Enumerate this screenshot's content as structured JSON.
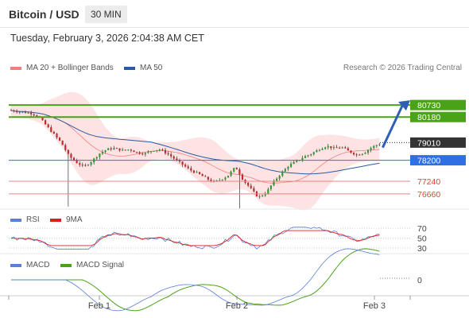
{
  "header": {
    "title": "Bitcoin / USD",
    "timeframe": "30 MIN"
  },
  "datetime": "Tuesday, February 3, 2026 2:04:38 AM CET",
  "legend": {
    "ma20": {
      "label": "MA 20 + Bollinger Bands",
      "color": "#f08080"
    },
    "ma50": {
      "label": "MA 50",
      "color": "#2c5aa0"
    }
  },
  "credit": "Research © 2026 Trading Central",
  "chart_data": {
    "type": "candlestick",
    "price_range": [
      76000,
      81900
    ],
    "levels": [
      {
        "label": "80730",
        "value": 80730,
        "color": "#4aa218"
      },
      {
        "label": "80180",
        "value": 80180,
        "color": "#4aa218"
      },
      {
        "label": "79010",
        "value": 79010,
        "color": "#333333"
      },
      {
        "label": "78200",
        "value": 78200,
        "color": "#2f6fe4"
      },
      {
        "label": "77240",
        "value": 77240,
        "color": "#f08080"
      },
      {
        "label": "76660",
        "value": 76660,
        "color": "#f08080"
      }
    ],
    "close_path": [
      80500,
      80450,
      80400,
      80350,
      80200,
      79800,
      79400,
      79000,
      78400,
      78100,
      77900,
      78150,
      78500,
      78700,
      78750,
      78650,
      78700,
      78550,
      78500,
      78650,
      78700,
      78500,
      78250,
      78000,
      77750,
      77600,
      77400,
      77200,
      77300,
      77500,
      77900,
      77300,
      76900,
      76500,
      76700,
      77200,
      77600,
      77950,
      78150,
      78350,
      78500,
      78700,
      78850,
      78750,
      78800,
      78600,
      78450,
      78550,
      78800,
      78950
    ],
    "forecast_target": 80730,
    "x_ticks": [
      "Feb 1",
      "Feb 2",
      "Feb 3"
    ],
    "rsi": {
      "labels": [
        "RSI",
        "9MA"
      ],
      "levels": [
        "70",
        "50",
        "30"
      ],
      "colors": [
        "#5b7fd6",
        "#d62020"
      ]
    },
    "macd": {
      "labels": [
        "MACD",
        "MACD Signal"
      ],
      "levels": [
        "0"
      ],
      "colors": [
        "#5b7fd6",
        "#4aa218"
      ]
    }
  }
}
